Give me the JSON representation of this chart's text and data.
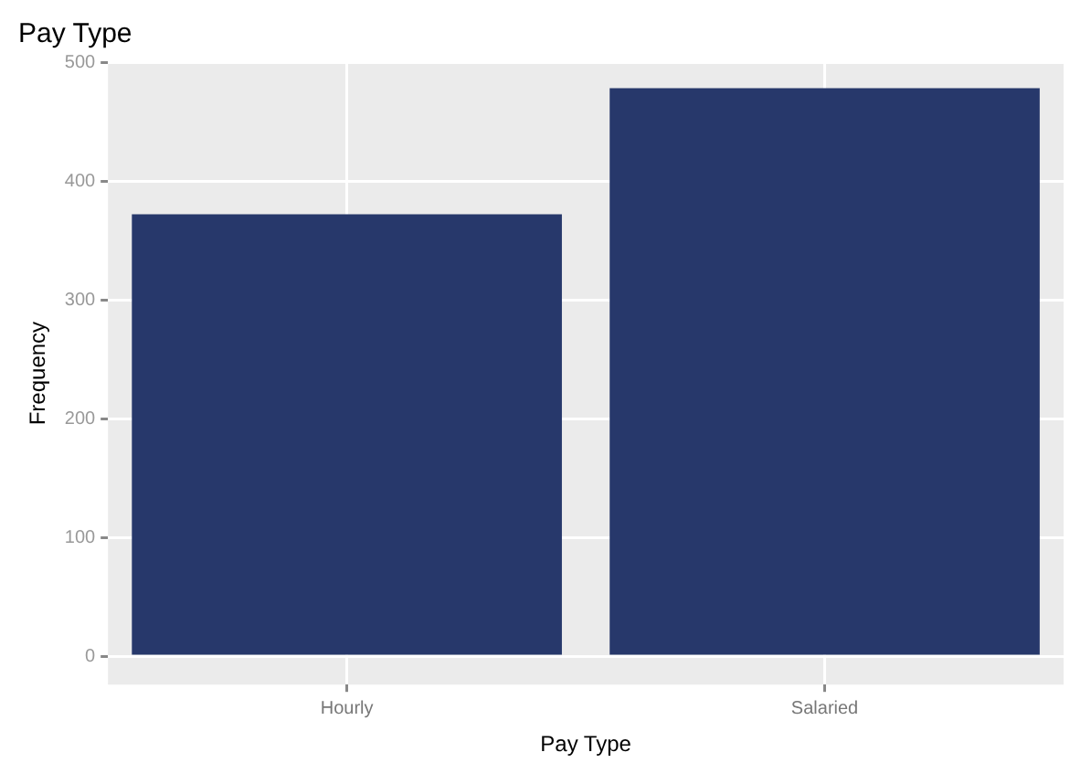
{
  "chart_data": {
    "type": "bar",
    "title": "Pay Type",
    "xlabel": "Pay Type",
    "ylabel": "Frequency",
    "categories": [
      "Hourly",
      "Salaried"
    ],
    "values": [
      372,
      478
    ],
    "color": "#27386b",
    "ylim": [
      -24,
      500
    ],
    "yticks": [
      0,
      100,
      200,
      300,
      400,
      500
    ],
    "grid": true,
    "legend": false
  }
}
